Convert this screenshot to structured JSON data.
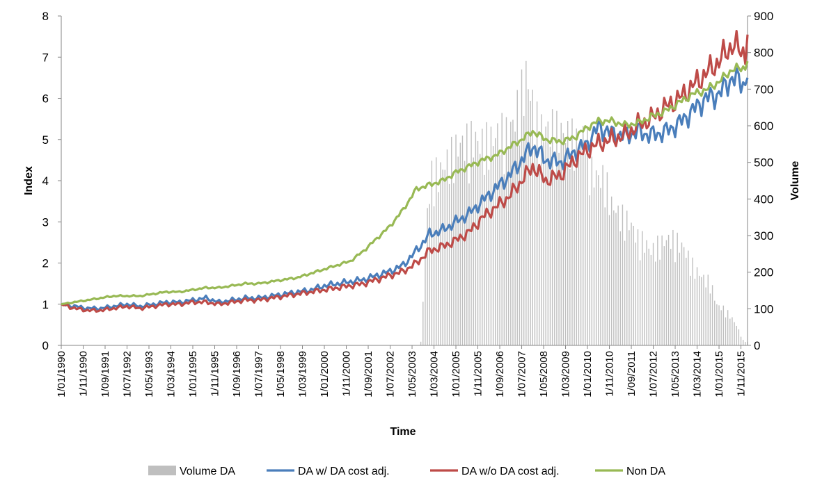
{
  "chart_data": {
    "type": "line",
    "title": "",
    "xlabel": "Time",
    "ylabel": "Index",
    "y2label": "Volume",
    "ylim": [
      0,
      8
    ],
    "y2lim": [
      0,
      900
    ],
    "y_ticks": [
      "0",
      "1",
      "2",
      "3",
      "4",
      "5",
      "6",
      "7",
      "8"
    ],
    "y2_ticks": [
      "0",
      "100",
      "200",
      "300",
      "400",
      "500",
      "600",
      "700",
      "800",
      "900"
    ],
    "x_ticks": [
      "1/01/1990",
      "1/11/1990",
      "1/09/1991",
      "1/07/1992",
      "1/05/1993",
      "1/03/1994",
      "1/01/1995",
      "1/11/1995",
      "1/09/1996",
      "1/07/1997",
      "1/05/1998",
      "1/03/1999",
      "1/01/2000",
      "1/11/2000",
      "1/09/2001",
      "1/07/2002",
      "1/05/2003",
      "1/03/2004",
      "1/01/2005",
      "1/11/2005",
      "1/09/2006",
      "1/07/2007",
      "1/05/2008",
      "1/03/2009",
      "1/01/2010",
      "1/11/2010",
      "1/09/2011",
      "1/07/2012",
      "1/05/2013",
      "1/03/2014",
      "1/01/2015",
      "1/11/2015"
    ],
    "x_start": "1990-01",
    "x_end": "2016-02",
    "legend_position": "bottom",
    "grid": false,
    "series": [
      {
        "name": "Volume DA",
        "type": "bar",
        "axis": "right",
        "color": "#bfbfbf",
        "points": [
          [
            "2003-09",
            10
          ],
          [
            "2003-12",
            400
          ],
          [
            "2004-02",
            510
          ],
          [
            "2004-06",
            520
          ],
          [
            "2004-09",
            550
          ],
          [
            "2004-12",
            580
          ],
          [
            "2005-03",
            600
          ],
          [
            "2005-06",
            610
          ],
          [
            "2005-09",
            620
          ],
          [
            "2005-12",
            600
          ],
          [
            "2006-03",
            610
          ],
          [
            "2006-06",
            615
          ],
          [
            "2006-09",
            640
          ],
          [
            "2006-12",
            630
          ],
          [
            "2007-03",
            660
          ],
          [
            "2007-06",
            730
          ],
          [
            "2007-09",
            805
          ],
          [
            "2007-12",
            720
          ],
          [
            "2008-03",
            640
          ],
          [
            "2008-06",
            645
          ],
          [
            "2008-09",
            650
          ],
          [
            "2008-12",
            640
          ],
          [
            "2009-03",
            630
          ],
          [
            "2009-06",
            620
          ],
          [
            "2009-09",
            600
          ],
          [
            "2009-12",
            640
          ],
          [
            "2010-03",
            520
          ],
          [
            "2010-06",
            500
          ],
          [
            "2010-09",
            500
          ],
          [
            "2010-12",
            420
          ],
          [
            "2011-03",
            395
          ],
          [
            "2011-06",
            380
          ],
          [
            "2011-09",
            360
          ],
          [
            "2011-12",
            320
          ],
          [
            "2012-03",
            310
          ],
          [
            "2012-06",
            280
          ],
          [
            "2012-09",
            300
          ],
          [
            "2012-12",
            310
          ],
          [
            "2013-03",
            320
          ],
          [
            "2013-06",
            310
          ],
          [
            "2013-09",
            290
          ],
          [
            "2013-12",
            250
          ],
          [
            "2014-03",
            220
          ],
          [
            "2014-06",
            200
          ],
          [
            "2014-09",
            190
          ],
          [
            "2014-12",
            120
          ],
          [
            "2015-03",
            110
          ],
          [
            "2015-06",
            90
          ],
          [
            "2015-09",
            60
          ],
          [
            "2015-12",
            15
          ],
          [
            "2016-02",
            10
          ]
        ]
      },
      {
        "name": "DA w/ DA cost adj.",
        "type": "line",
        "axis": "left",
        "color": "#4a7ebb",
        "points": [
          [
            "1990-01",
            1.0
          ],
          [
            "1990-07",
            0.95
          ],
          [
            "1991-01",
            0.9
          ],
          [
            "1991-07",
            0.9
          ],
          [
            "1992-01",
            0.95
          ],
          [
            "1992-07",
            1.0
          ],
          [
            "1993-01",
            0.95
          ],
          [
            "1993-07",
            1.0
          ],
          [
            "1994-01",
            1.05
          ],
          [
            "1994-07",
            1.05
          ],
          [
            "1995-01",
            1.1
          ],
          [
            "1995-07",
            1.15
          ],
          [
            "1996-01",
            1.05
          ],
          [
            "1996-07",
            1.1
          ],
          [
            "1997-01",
            1.15
          ],
          [
            "1997-07",
            1.15
          ],
          [
            "1998-01",
            1.2
          ],
          [
            "1998-07",
            1.25
          ],
          [
            "1999-01",
            1.3
          ],
          [
            "1999-07",
            1.35
          ],
          [
            "2000-01",
            1.45
          ],
          [
            "2000-07",
            1.5
          ],
          [
            "2001-01",
            1.55
          ],
          [
            "2001-07",
            1.6
          ],
          [
            "2002-01",
            1.7
          ],
          [
            "2002-07",
            1.8
          ],
          [
            "2003-01",
            1.95
          ],
          [
            "2003-07",
            2.3
          ],
          [
            "2004-01",
            2.7
          ],
          [
            "2004-07",
            2.8
          ],
          [
            "2005-01",
            3.0
          ],
          [
            "2005-07",
            3.2
          ],
          [
            "2006-01",
            3.5
          ],
          [
            "2006-07",
            3.8
          ],
          [
            "2007-01",
            4.1
          ],
          [
            "2007-07",
            4.5
          ],
          [
            "2007-12",
            4.85
          ],
          [
            "2008-06",
            4.5
          ],
          [
            "2009-01",
            4.45
          ],
          [
            "2009-07",
            4.7
          ],
          [
            "2010-01",
            4.9
          ],
          [
            "2010-06",
            5.3
          ],
          [
            "2010-12",
            5.15
          ],
          [
            "2011-06",
            5.1
          ],
          [
            "2011-12",
            5.2
          ],
          [
            "2012-06",
            5.1
          ],
          [
            "2013-01",
            5.2
          ],
          [
            "2013-07",
            5.4
          ],
          [
            "2014-01",
            5.7
          ],
          [
            "2014-07",
            6.0
          ],
          [
            "2015-01",
            6.1
          ],
          [
            "2015-07",
            6.5
          ],
          [
            "2016-01",
            6.35
          ],
          [
            "2016-02",
            6.5
          ]
        ]
      },
      {
        "name": "DA w/o DA cost adj.",
        "type": "line",
        "axis": "left",
        "color": "#be4b48",
        "points": [
          [
            "1990-01",
            1.0
          ],
          [
            "1990-07",
            0.9
          ],
          [
            "1991-01",
            0.85
          ],
          [
            "1991-07",
            0.85
          ],
          [
            "1992-01",
            0.9
          ],
          [
            "1992-07",
            0.95
          ],
          [
            "1993-01",
            0.9
          ],
          [
            "1993-07",
            0.95
          ],
          [
            "1994-01",
            1.0
          ],
          [
            "1994-07",
            1.0
          ],
          [
            "1995-01",
            1.05
          ],
          [
            "1995-07",
            1.05
          ],
          [
            "1996-01",
            1.0
          ],
          [
            "1996-07",
            1.05
          ],
          [
            "1997-01",
            1.1
          ],
          [
            "1997-07",
            1.1
          ],
          [
            "1998-01",
            1.15
          ],
          [
            "1998-07",
            1.2
          ],
          [
            "1999-01",
            1.25
          ],
          [
            "1999-07",
            1.3
          ],
          [
            "2000-01",
            1.35
          ],
          [
            "2000-07",
            1.4
          ],
          [
            "2001-01",
            1.45
          ],
          [
            "2001-07",
            1.5
          ],
          [
            "2002-01",
            1.6
          ],
          [
            "2002-07",
            1.7
          ],
          [
            "2003-01",
            1.8
          ],
          [
            "2003-07",
            2.0
          ],
          [
            "2004-01",
            2.3
          ],
          [
            "2004-07",
            2.4
          ],
          [
            "2005-01",
            2.55
          ],
          [
            "2005-07",
            2.75
          ],
          [
            "2006-01",
            3.1
          ],
          [
            "2006-07",
            3.35
          ],
          [
            "2007-01",
            3.6
          ],
          [
            "2007-07",
            4.0
          ],
          [
            "2007-12",
            4.35
          ],
          [
            "2008-06",
            4.0
          ],
          [
            "2009-01",
            4.15
          ],
          [
            "2009-07",
            4.5
          ],
          [
            "2010-01",
            4.75
          ],
          [
            "2010-06",
            4.9
          ],
          [
            "2010-12",
            5.0
          ],
          [
            "2011-06",
            5.1
          ],
          [
            "2011-12",
            5.35
          ],
          [
            "2012-06",
            5.5
          ],
          [
            "2013-01",
            5.8
          ],
          [
            "2013-07",
            6.0
          ],
          [
            "2014-01",
            6.3
          ],
          [
            "2014-07",
            6.6
          ],
          [
            "2015-01",
            6.9
          ],
          [
            "2015-07",
            7.3
          ],
          [
            "2016-01",
            7.1
          ],
          [
            "2016-02",
            7.55
          ]
        ]
      },
      {
        "name": "Non DA",
        "type": "line",
        "axis": "left",
        "color": "#98b954",
        "points": [
          [
            "1990-01",
            1.0
          ],
          [
            "1990-07",
            1.05
          ],
          [
            "1991-01",
            1.1
          ],
          [
            "1991-07",
            1.15
          ],
          [
            "1992-01",
            1.2
          ],
          [
            "1992-07",
            1.2
          ],
          [
            "1993-01",
            1.2
          ],
          [
            "1993-07",
            1.25
          ],
          [
            "1994-01",
            1.3
          ],
          [
            "1994-07",
            1.3
          ],
          [
            "1995-01",
            1.35
          ],
          [
            "1995-07",
            1.4
          ],
          [
            "1996-01",
            1.4
          ],
          [
            "1996-07",
            1.45
          ],
          [
            "1997-01",
            1.5
          ],
          [
            "1997-07",
            1.5
          ],
          [
            "1998-01",
            1.55
          ],
          [
            "1998-07",
            1.6
          ],
          [
            "1999-01",
            1.65
          ],
          [
            "1999-07",
            1.75
          ],
          [
            "2000-01",
            1.85
          ],
          [
            "2000-07",
            1.95
          ],
          [
            "2001-01",
            2.05
          ],
          [
            "2001-07",
            2.3
          ],
          [
            "2002-01",
            2.6
          ],
          [
            "2002-07",
            2.9
          ],
          [
            "2003-01",
            3.3
          ],
          [
            "2003-07",
            3.8
          ],
          [
            "2004-01",
            3.9
          ],
          [
            "2004-07",
            4.0
          ],
          [
            "2005-01",
            4.2
          ],
          [
            "2005-07",
            4.35
          ],
          [
            "2006-01",
            4.5
          ],
          [
            "2006-07",
            4.6
          ],
          [
            "2007-01",
            4.8
          ],
          [
            "2007-07",
            5.0
          ],
          [
            "2007-12",
            5.2
          ],
          [
            "2008-06",
            5.0
          ],
          [
            "2009-01",
            4.95
          ],
          [
            "2009-07",
            5.05
          ],
          [
            "2010-01",
            5.3
          ],
          [
            "2010-06",
            5.45
          ],
          [
            "2010-12",
            5.45
          ],
          [
            "2011-06",
            5.35
          ],
          [
            "2011-12",
            5.4
          ],
          [
            "2012-06",
            5.55
          ],
          [
            "2013-01",
            5.7
          ],
          [
            "2013-07",
            5.9
          ],
          [
            "2014-01",
            6.1
          ],
          [
            "2014-07",
            6.2
          ],
          [
            "2015-01",
            6.4
          ],
          [
            "2015-07",
            6.7
          ],
          [
            "2016-01",
            6.75
          ],
          [
            "2016-02",
            6.9
          ]
        ]
      }
    ]
  }
}
